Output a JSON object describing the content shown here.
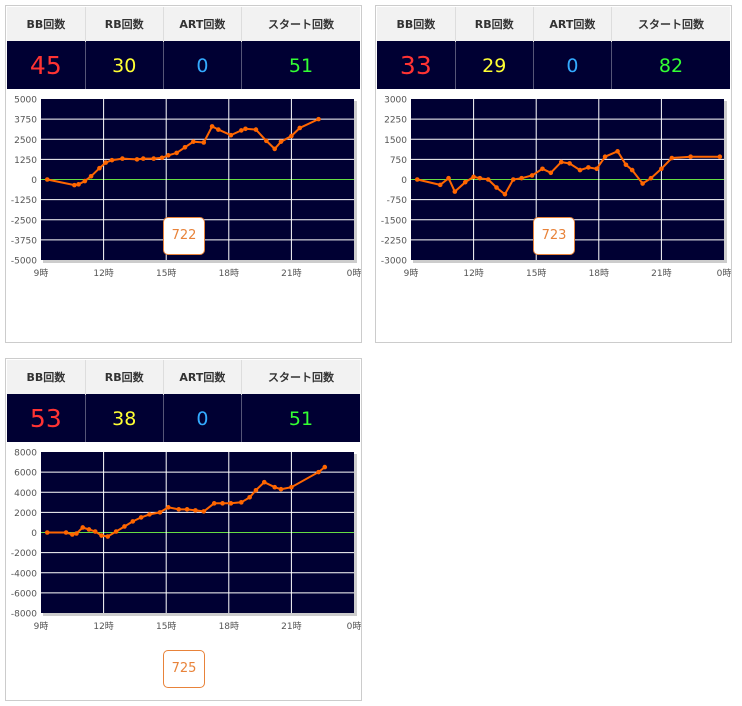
{
  "headers": {
    "bb": "BB回数",
    "rb": "RB回数",
    "art": "ART回数",
    "start": "スタート回数"
  },
  "machines": [
    {
      "bb": "45",
      "rb": "30",
      "art": "0",
      "start": "51",
      "button": "722",
      "chart_data": {
        "type": "line",
        "ylim": [
          -5000,
          5000
        ],
        "yticks": [
          "5000",
          "3750",
          "2500",
          "1250",
          "0",
          "-1250",
          "-2500",
          "-3750",
          "-5000"
        ],
        "xticks": [
          "9時",
          "12時",
          "15時",
          "18時",
          "21時",
          "0時"
        ],
        "xlim": [
          9,
          24
        ],
        "grid": true,
        "series": [
          {
            "color": "#ff6600",
            "x": [
              9.3,
              10.6,
              10.8,
              11.1,
              11.4,
              11.8,
              12.1,
              12.4,
              12.9,
              13.6,
              13.9,
              14.4,
              14.8,
              15.1,
              15.5,
              15.9,
              16.3,
              16.8,
              17.2,
              17.5,
              18.1,
              18.6,
              18.8,
              19.3,
              19.8,
              20.2,
              20.5,
              21.0,
              21.4,
              22.3
            ],
            "y": [
              0,
              -350,
              -300,
              -100,
              200,
              700,
              1050,
              1200,
              1300,
              1250,
              1300,
              1300,
              1350,
              1500,
              1650,
              2000,
              2350,
              2300,
              3300,
              3100,
              2750,
              3050,
              3150,
              3100,
              2400,
              1900,
              2350,
              2700,
              3200,
              3750
            ]
          }
        ]
      }
    },
    {
      "bb": "33",
      "rb": "29",
      "art": "0",
      "start": "82",
      "button": "723",
      "chart_data": {
        "type": "line",
        "ylim": [
          -3000,
          3000
        ],
        "yticks": [
          "3000",
          "2250",
          "1500",
          "750",
          "0",
          "-750",
          "-1500",
          "-2250",
          "-3000"
        ],
        "xticks": [
          "9時",
          "12時",
          "15時",
          "18時",
          "21時",
          "0時"
        ],
        "xlim": [
          9,
          24
        ],
        "grid": true,
        "series": [
          {
            "color": "#ff6600",
            "x": [
              9.3,
              10.4,
              10.8,
              11.1,
              11.6,
              12.0,
              12.3,
              12.7,
              13.1,
              13.5,
              13.9,
              14.3,
              14.8,
              15.3,
              15.7,
              16.2,
              16.6,
              17.1,
              17.5,
              17.9,
              18.3,
              18.9,
              19.3,
              19.6,
              20.1,
              20.5,
              21.0,
              21.5,
              22.4,
              23.8
            ],
            "y": [
              0,
              -200,
              50,
              -450,
              -100,
              100,
              50,
              0,
              -300,
              -550,
              0,
              50,
              150,
              400,
              250,
              650,
              600,
              350,
              450,
              400,
              850,
              1050,
              550,
              350,
              -150,
              50,
              400,
              800,
              850,
              850
            ]
          }
        ]
      }
    },
    {
      "bb": "53",
      "rb": "38",
      "art": "0",
      "start": "51",
      "button": "725",
      "chart_data": {
        "type": "line",
        "ylim": [
          -8000,
          8000
        ],
        "yticks": [
          "8000",
          "6000",
          "4000",
          "2000",
          "0",
          "-2000",
          "-4000",
          "-6000",
          "-8000"
        ],
        "xticks": [
          "9時",
          "12時",
          "15時",
          "18時",
          "21時",
          "0時"
        ],
        "xlim": [
          9,
          24
        ],
        "grid": true,
        "series": [
          {
            "color": "#ff6600",
            "x": [
              9.3,
              10.2,
              10.5,
              10.7,
              11.0,
              11.3,
              11.6,
              11.9,
              12.2,
              12.6,
              13.0,
              13.4,
              13.8,
              14.2,
              14.7,
              15.1,
              15.6,
              16.0,
              16.4,
              16.8,
              17.3,
              17.7,
              18.1,
              18.6,
              19.0,
              19.3,
              19.7,
              20.2,
              20.5,
              21.0,
              22.3,
              22.6
            ],
            "y": [
              0,
              0,
              -200,
              -100,
              500,
              300,
              100,
              -300,
              -400,
              100,
              600,
              1100,
              1500,
              1800,
              2000,
              2500,
              2300,
              2300,
              2200,
              2100,
              2900,
              2900,
              2900,
              3000,
              3500,
              4200,
              5000,
              4500,
              4300,
              4500,
              6000,
              6500
            ]
          }
        ]
      }
    }
  ]
}
